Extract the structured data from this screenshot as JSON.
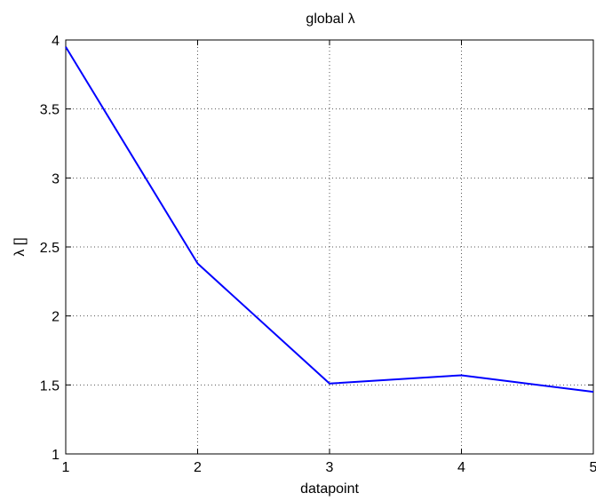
{
  "chart_data": {
    "type": "line",
    "title": "global λ",
    "xlabel": "datapoint",
    "ylabel": "λ []",
    "x": [
      1,
      2,
      3,
      4,
      5
    ],
    "series": [
      {
        "values": [
          3.95,
          2.38,
          1.51,
          1.57,
          1.45
        ]
      }
    ],
    "xlim": [
      1,
      5
    ],
    "ylim": [
      1,
      4
    ],
    "xticks": [
      "1",
      "2",
      "3",
      "4",
      "5"
    ],
    "yticks": [
      "1",
      "1.5",
      "2",
      "2.5",
      "3",
      "3.5",
      "4"
    ],
    "grid": true,
    "colors": {
      "line": "#0000ff",
      "grid": "#555555",
      "axis": "#000000"
    }
  }
}
